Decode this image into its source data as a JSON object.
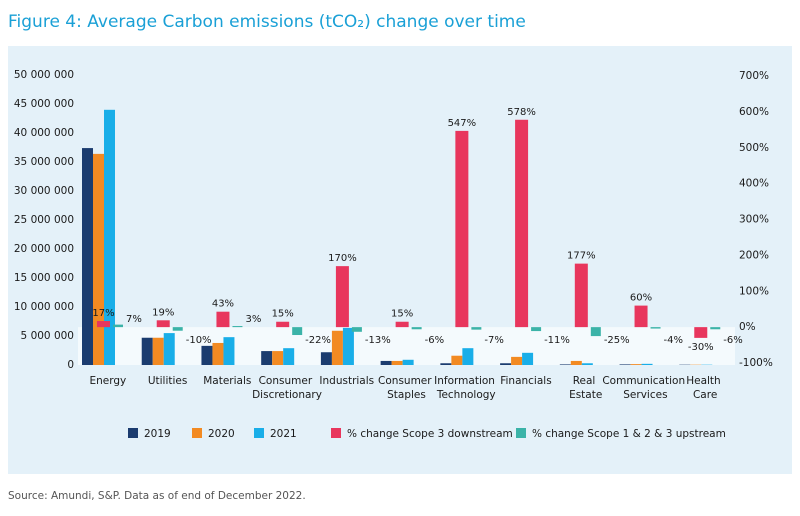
{
  "chart_data": {
    "type": "bar",
    "title": "Figure 4: Average Carbon emissions (tCO₂) change over time",
    "source": "Source: Amundi, S&P. Data as of end of December 2022.",
    "categories": [
      "Energy",
      "Utilities",
      "Materials",
      "Consumer Discretionary",
      "Industrials",
      "Consumer Staples",
      "Information Technology",
      "Financials",
      "Real Estate",
      "Communication Services",
      "Health Care"
    ],
    "series": [
      {
        "name": "2019",
        "color": "#1b3c6f",
        "values": [
          37400000,
          4700000,
          3300000,
          2400000,
          2200000,
          700000,
          300000,
          300000,
          100000,
          100000,
          50000
        ]
      },
      {
        "name": "2020",
        "color": "#f28a22",
        "values": [
          36400000,
          4700000,
          3800000,
          2400000,
          5900000,
          700000,
          1600000,
          1400000,
          700000,
          150000,
          50000
        ]
      },
      {
        "name": "2021",
        "color": "#19aee8",
        "values": [
          44000000,
          5500000,
          4800000,
          2900000,
          6400000,
          900000,
          2900000,
          2100000,
          300000,
          200000,
          50000
        ]
      },
      {
        "name": "% change Scope 3 downstream",
        "color": "#e8365d",
        "axis": "y2",
        "values": [
          17,
          19,
          43,
          15,
          170,
          15,
          547,
          578,
          177,
          60,
          -30
        ],
        "value_labels": [
          "17%",
          "19%",
          "43%",
          "15%",
          "170%",
          "15%",
          "547%",
          "578%",
          "177%",
          "60%",
          "-30%"
        ]
      },
      {
        "name": "% change Scope 1 & 2 & 3 upstream",
        "color": "#3bb3a8",
        "axis": "y2",
        "values": [
          7,
          -10,
          3,
          -22,
          -13,
          -6,
          -7,
          -11,
          -25,
          -4,
          -6
        ],
        "value_labels": [
          "7%",
          "-10%",
          "3%",
          "-22%",
          "-13%",
          "-6%",
          "-7%",
          "-11%",
          "-25%",
          "-4%",
          "-6%"
        ]
      }
    ],
    "ylim": [
      0,
      50000000
    ],
    "yticks": [
      0,
      {
        "value": 5000000,
        "label": "5 000 000"
      },
      {
        "value": 10000000,
        "label": "10 000 000"
      },
      {
        "value": 15000000,
        "label": "15 000 000"
      },
      {
        "value": 20000000,
        "label": "20 000 000"
      },
      {
        "value": 25000000,
        "label": "25 000 000"
      },
      {
        "value": 30000000,
        "label": "30 000 000"
      },
      {
        "value": 35000000,
        "label": "35 000 000"
      },
      {
        "value": 40000000,
        "label": "40 000 000"
      },
      {
        "value": 45000000,
        "label": "45 000 000"
      },
      {
        "value": 50000000,
        "label": "50 000 000"
      }
    ],
    "y2lim": [
      -100,
      700
    ],
    "y2ticks": [
      {
        "value": -100,
        "label": "-100%"
      },
      {
        "value": 0,
        "label": "0%"
      },
      {
        "value": 100,
        "label": "100%"
      },
      {
        "value": 200,
        "label": "200%"
      },
      {
        "value": 300,
        "label": "300%"
      },
      {
        "value": 400,
        "label": "400%"
      },
      {
        "value": 500,
        "label": "500%"
      },
      {
        "value": 600,
        "label": "600%"
      },
      {
        "value": 700,
        "label": "700%"
      }
    ],
    "grid": false,
    "legend": "bottom"
  }
}
